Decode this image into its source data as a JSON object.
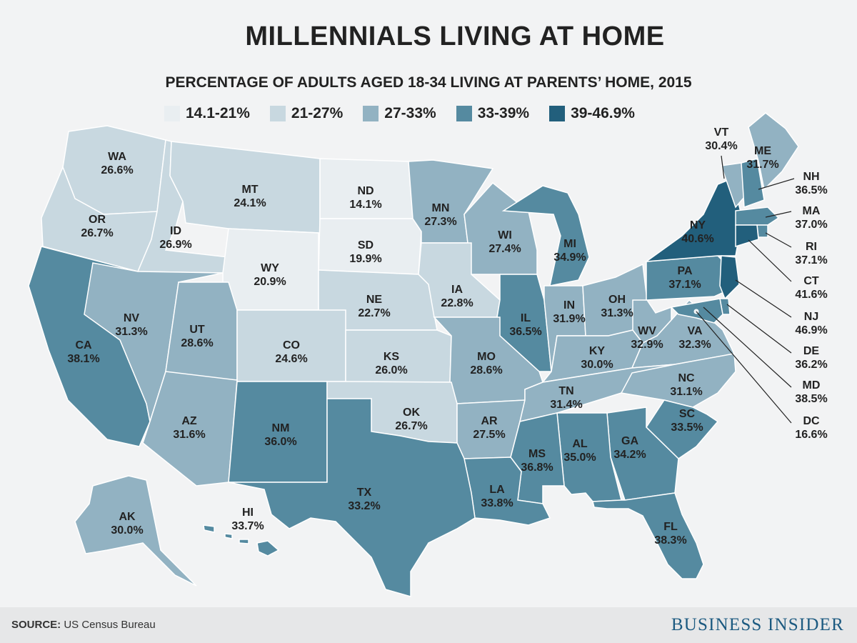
{
  "title": "MILLENNIALS LIVING AT HOME",
  "subtitle": "PERCENTAGE OF ADULTS AGED 18-34 LIVING AT PARENTS’ HOME, 2015",
  "legend": [
    {
      "label": "14.1-21%",
      "color": "#e9eef1"
    },
    {
      "label": "21-27%",
      "color": "#c8d8e0"
    },
    {
      "label": "27-33%",
      "color": "#92b2c2"
    },
    {
      "label": "33-39%",
      "color": "#558aa0"
    },
    {
      "label": "39-46.9%",
      "color": "#225f7c"
    }
  ],
  "source_label": "SOURCE:",
  "source_text": "US Census Bureau",
  "brand": "BUSINESS INSIDER",
  "states": [
    {
      "code": "WA",
      "value": "26.6%"
    },
    {
      "code": "OR",
      "value": "26.7%"
    },
    {
      "code": "ID",
      "value": "26.9%"
    },
    {
      "code": "MT",
      "value": "24.1%"
    },
    {
      "code": "ND",
      "value": "14.1%"
    },
    {
      "code": "SD",
      "value": "19.9%"
    },
    {
      "code": "WY",
      "value": "20.9%"
    },
    {
      "code": "NE",
      "value": "22.7%"
    },
    {
      "code": "MN",
      "value": "27.3%"
    },
    {
      "code": "WI",
      "value": "27.4%"
    },
    {
      "code": "MI",
      "value": "34.9%"
    },
    {
      "code": "IA",
      "value": "22.8%"
    },
    {
      "code": "IL",
      "value": "36.5%"
    },
    {
      "code": "IN",
      "value": "31.9%"
    },
    {
      "code": "OH",
      "value": "31.3%"
    },
    {
      "code": "CA",
      "value": "38.1%"
    },
    {
      "code": "NV",
      "value": "31.3%"
    },
    {
      "code": "UT",
      "value": "28.6%"
    },
    {
      "code": "CO",
      "value": "24.6%"
    },
    {
      "code": "KS",
      "value": "26.0%"
    },
    {
      "code": "MO",
      "value": "28.6%"
    },
    {
      "code": "KY",
      "value": "30.0%"
    },
    {
      "code": "WV",
      "value": "32.9%"
    },
    {
      "code": "VA",
      "value": "32.3%"
    },
    {
      "code": "AZ",
      "value": "31.6%"
    },
    {
      "code": "NM",
      "value": "36.0%"
    },
    {
      "code": "OK",
      "value": "26.7%"
    },
    {
      "code": "AR",
      "value": "27.5%"
    },
    {
      "code": "TN",
      "value": "31.4%"
    },
    {
      "code": "NC",
      "value": "31.1%"
    },
    {
      "code": "SC",
      "value": "33.5%"
    },
    {
      "code": "GA",
      "value": "34.2%"
    },
    {
      "code": "AL",
      "value": "35.0%"
    },
    {
      "code": "MS",
      "value": "36.8%"
    },
    {
      "code": "LA",
      "value": "33.8%"
    },
    {
      "code": "TX",
      "value": "33.2%"
    },
    {
      "code": "FL",
      "value": "38.3%"
    },
    {
      "code": "AK",
      "value": "30.0%"
    },
    {
      "code": "HI",
      "value": "33.7%"
    },
    {
      "code": "PA",
      "value": "37.1%"
    },
    {
      "code": "NY",
      "value": "40.6%"
    },
    {
      "code": "VT",
      "value": "30.4%"
    },
    {
      "code": "ME",
      "value": "31.7%"
    },
    {
      "code": "NH",
      "value": "36.5%"
    },
    {
      "code": "MA",
      "value": "37.0%"
    },
    {
      "code": "RI",
      "value": "37.1%"
    },
    {
      "code": "CT",
      "value": "41.6%"
    },
    {
      "code": "NJ",
      "value": "46.9%"
    },
    {
      "code": "DE",
      "value": "36.2%"
    },
    {
      "code": "MD",
      "value": "38.5%"
    },
    {
      "code": "DC",
      "value": "16.6%"
    }
  ]
}
